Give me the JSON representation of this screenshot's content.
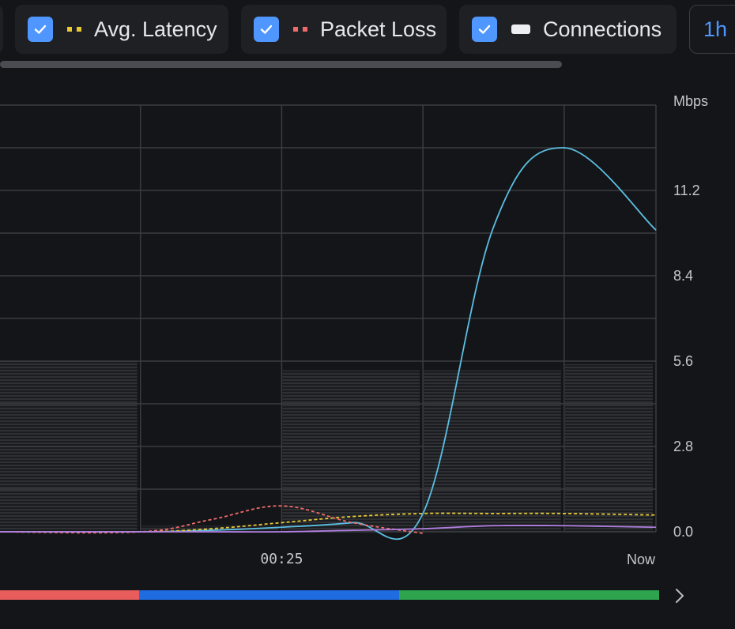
{
  "legend": {
    "items": [
      {
        "label": "Avg. Latency",
        "checked": true,
        "swatch_color": "#e8c933",
        "swatch_style": "dotted",
        "icon": "check-icon"
      },
      {
        "label": "Packet Loss",
        "checked": true,
        "swatch_color": "#ef6b6b",
        "swatch_style": "dotted",
        "icon": "check-icon"
      },
      {
        "label": "Connections",
        "checked": true,
        "swatch_color": "#eceef2",
        "swatch_style": "solid",
        "icon": "check-icon"
      }
    ],
    "range_label": "1h"
  },
  "colors": {
    "background": "#141518",
    "accent": "#4f97ff",
    "throughput": "#5bbfe3",
    "latency": "#e8c933",
    "packet_loss": "#ef6b6b",
    "connections": "#2b2c30",
    "purple_series": "#b07ee0",
    "grid": "#3a3c41"
  },
  "chart_data": {
    "type": "line",
    "y_unit_label": "Mbps",
    "y_ticks": [
      "0.0",
      "2.8",
      "5.6",
      "8.4",
      "11.2"
    ],
    "ylim": [
      0,
      14
    ],
    "x_tick_labels": [
      "00:25",
      "Now"
    ],
    "x_domain": [
      0,
      4.65
    ],
    "x": [
      0.0,
      1.0,
      1.5,
      2.0,
      2.5,
      3.0,
      3.5,
      4.0,
      4.65
    ],
    "grid": true,
    "series": [
      {
        "key": "throughput",
        "values": [
          0.0,
          0.0,
          0.05,
          0.15,
          0.3,
          0.6,
          10.0,
          12.6,
          9.9
        ],
        "style": "solid"
      },
      {
        "key": "latency",
        "values": [
          0.0,
          0.0,
          0.1,
          0.3,
          0.5,
          0.6,
          0.6,
          0.6,
          0.55
        ],
        "style": "dashed"
      },
      {
        "key": "packet_loss",
        "values": [
          0.0,
          0.0,
          0.4,
          0.85,
          0.3,
          -0.05,
          null,
          null,
          null
        ],
        "style": "dashed"
      },
      {
        "key": "purple",
        "values": [
          0.0,
          0.0,
          0.0,
          0.0,
          0.05,
          0.1,
          0.2,
          0.2,
          0.15
        ],
        "style": "solid"
      }
    ],
    "bars": {
      "series_key": "connections",
      "x_intervals": [
        [
          0.0,
          1.0
        ],
        [
          1.0,
          2.0
        ],
        [
          2.0,
          3.0
        ],
        [
          3.0,
          4.0
        ],
        [
          4.0,
          4.65
        ]
      ],
      "values": [
        5.6,
        0.2,
        5.3,
        5.3,
        5.5
      ]
    }
  },
  "timeline": {
    "segments": [
      {
        "color": "#e85c5c",
        "fraction": 0.211
      },
      {
        "color": "#1f6be0",
        "fraction": 0.394
      },
      {
        "color": "#2ea44f",
        "fraction": 0.395
      }
    ],
    "next_icon": "chevron-right-icon"
  }
}
